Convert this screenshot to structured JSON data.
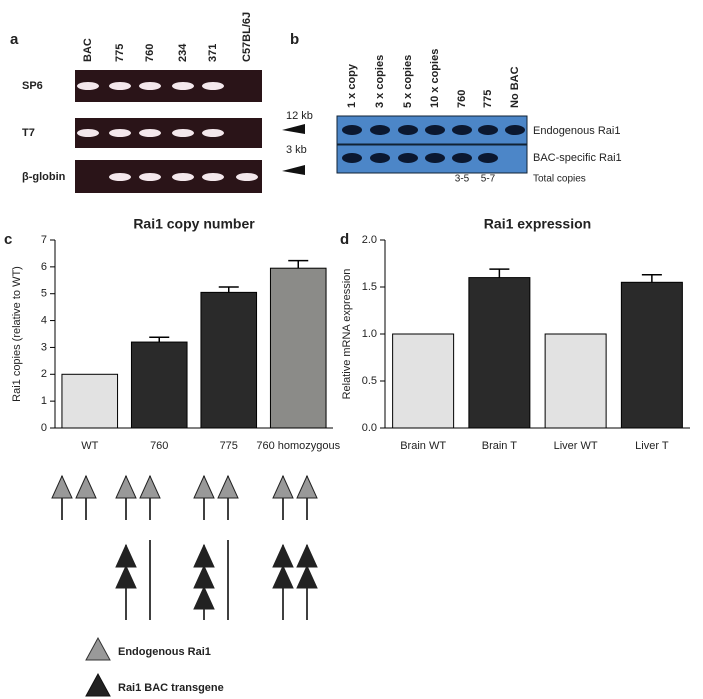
{
  "panels": [
    "a",
    "b",
    "c",
    "d"
  ],
  "gel_a": {
    "lanes": [
      "BAC",
      "775",
      "760",
      "234",
      "371",
      "C57BL/6J"
    ],
    "rows": [
      "SP6",
      "T7",
      "β-globin"
    ]
  },
  "gel_b": {
    "lanes": [
      "1 x copy",
      "3 x copies",
      "5 x copies",
      "10 x copies",
      "760",
      "775",
      "No BAC"
    ],
    "sizes": [
      "12 kb",
      "3 kb"
    ],
    "bands": [
      "Endogenous Rai1",
      "BAC-specific Rai1"
    ],
    "copies": [
      "3-5",
      "5-7"
    ],
    "copies_label": "Total copies"
  },
  "chart_data": [
    {
      "type": "bar",
      "title": "Rai1 copy number",
      "y_label": "Rai1 copies (relative to WT)",
      "categories": [
        "WT",
        "760",
        "775",
        "760 homozygous"
      ],
      "values": [
        2,
        3.2,
        5.05,
        5.95
      ],
      "errors": [
        null,
        0.18,
        0.2,
        0.28
      ],
      "colors": [
        "#e2e2e2",
        "#2a2a2a",
        "#2a2a2a",
        "#8b8b88"
      ],
      "ylim": [
        0,
        7
      ],
      "yticks": [
        0,
        1,
        2,
        3,
        4,
        5,
        6,
        7
      ]
    },
    {
      "type": "bar",
      "title": "Rai1 expression",
      "y_label": "Relative mRNA expression",
      "categories": [
        "Brain WT",
        "Brain T",
        "Liver WT",
        "Liver T"
      ],
      "values": [
        1,
        1.6,
        1,
        1.55
      ],
      "errors": [
        null,
        0.09,
        null,
        0.08
      ],
      "colors": [
        "#e2e2e2",
        "#2a2a2a",
        "#e2e2e2",
        "#2a2a2a"
      ],
      "ylim": [
        0,
        2
      ],
      "yticks": [
        {
          "value": 0,
          "label": "0.0"
        },
        {
          "value": 0.5,
          "label": "0.5"
        },
        {
          "value": 1,
          "label": "1.0"
        },
        {
          "value": 1.5,
          "label": "1.5"
        },
        {
          "value": 2,
          "label": "2.0"
        }
      ]
    }
  ],
  "legend": [
    "Endogenous Rai1",
    "Rai1 BAC transgene"
  ]
}
